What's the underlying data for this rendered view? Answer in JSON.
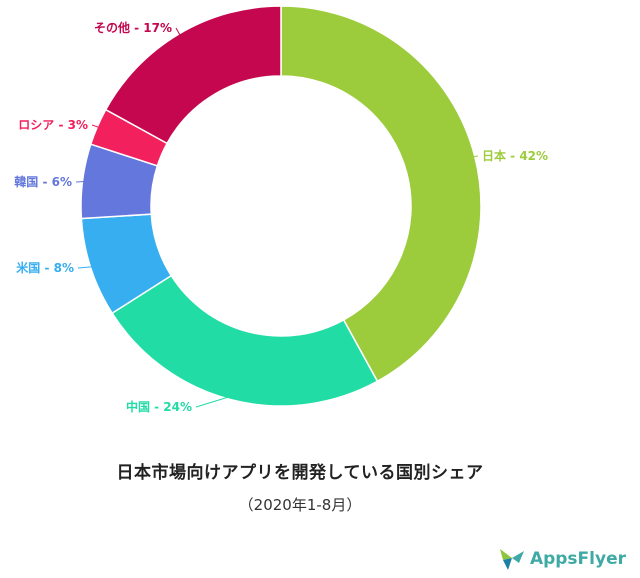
{
  "chart_data": {
    "type": "pie",
    "donut": true,
    "title": "日本市場向けアプリを開発している国別シェア",
    "subtitle": "（2020年1-8月）",
    "slices": [
      {
        "label": "日本 - 42%",
        "value": 42,
        "color": "#9ccc3c"
      },
      {
        "label": "中国 - 24%",
        "value": 24,
        "color": "#22dca6"
      },
      {
        "label": "米国 - 8%",
        "value": 8,
        "color": "#36aef0"
      },
      {
        "label": "韓国 - 6%",
        "value": 6,
        "color": "#6477dc"
      },
      {
        "label": "ロシア - 3%",
        "value": 3,
        "color": "#f2205c"
      },
      {
        "label": "その他 - 17%",
        "value": 17,
        "color": "#c4074e"
      }
    ]
  },
  "brand": {
    "text": "AppsFlyer",
    "logo_icon": "appsflyer-logo-icon",
    "logo_colors": [
      "#8cc63f",
      "#3fa9a5",
      "#1c7fa6"
    ]
  }
}
